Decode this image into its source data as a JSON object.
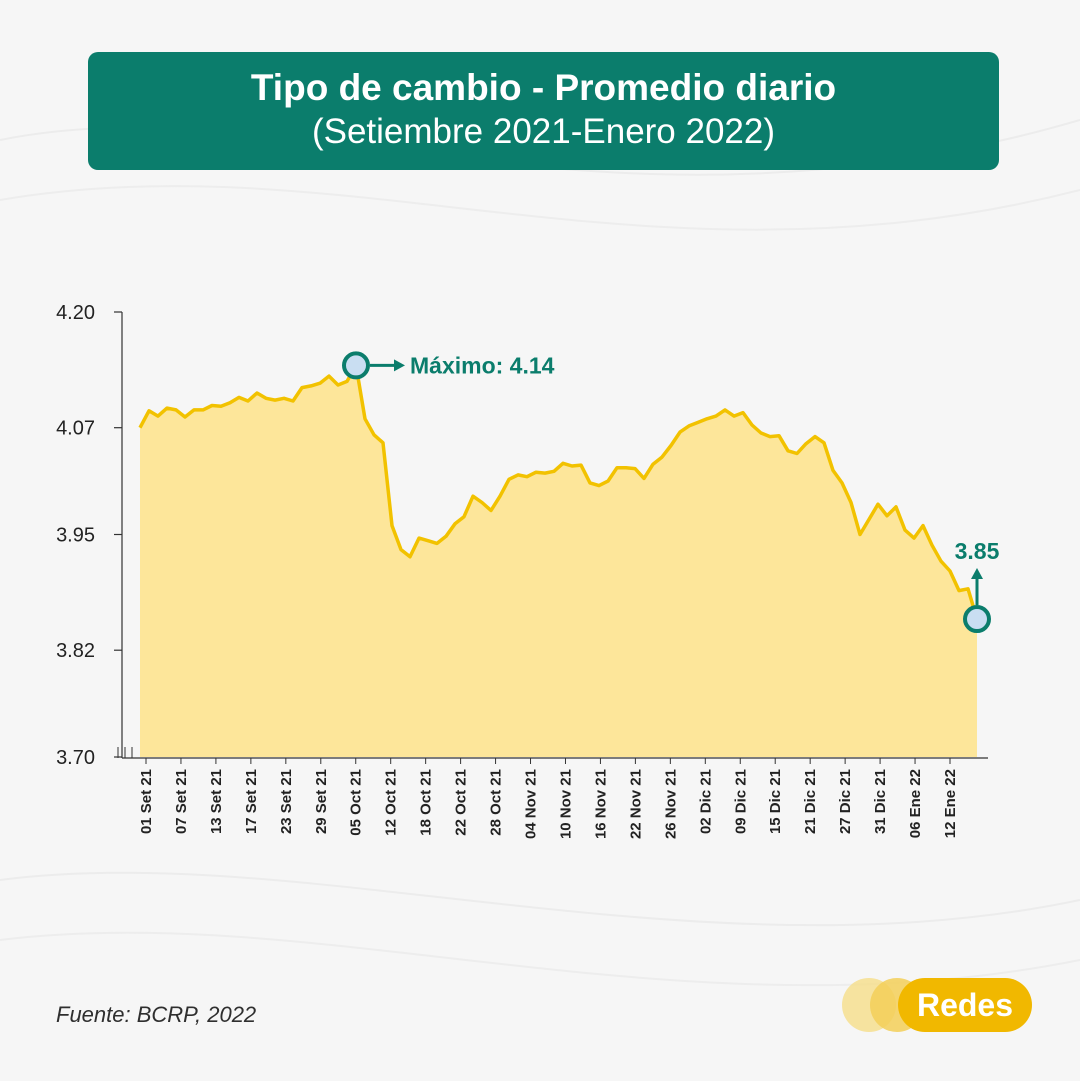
{
  "header": {
    "title": "Tipo de cambio - Promedio diario",
    "subtitle": "(Setiembre 2021-Enero 2022)"
  },
  "footer": {
    "source": "Fuente: BCRP, 2022",
    "brand": "Redes"
  },
  "colors": {
    "accent": "#0b7d6c",
    "line": "#f2c200",
    "area": "#fde69a",
    "marker_fill": "#c9def2",
    "brand": "#f1b800"
  },
  "chart_data": {
    "type": "area",
    "title": "Tipo de cambio - Promedio diario",
    "subtitle": "(Setiembre 2021-Enero 2022)",
    "xlabel": "",
    "ylabel": "",
    "ylim": [
      3.7,
      4.2
    ],
    "yticks": [
      "4.20",
      "4.07",
      "3.95",
      "3.82",
      "3.70"
    ],
    "ytick_values": [
      4.2,
      4.07,
      3.95,
      3.82,
      3.7
    ],
    "grid": false,
    "x_tick_labels": [
      "01 Set 21",
      "07 Set 21",
      "13 Set 21",
      "17 Set 21",
      "23 Set 21",
      "29 Set 21",
      "05 Oct 21",
      "12 Oct 21",
      "18 Oct 21",
      "22 Oct 21",
      "28 Oct 21",
      "04 Nov 21",
      "10 Nov 21",
      "16 Nov 21",
      "22 Nov 21",
      "26 Nov 21",
      "02 Dic 21",
      "09 Dic 21",
      "15 Dic 21",
      "21 Dic 21",
      "27 Dic 21",
      "31 Dic 21",
      "06 Ene 22",
      "12 Ene 22"
    ],
    "values": [
      4.07,
      4.089,
      4.083,
      4.092,
      4.09,
      4.082,
      4.09,
      4.09,
      4.095,
      4.094,
      4.098,
      4.104,
      4.1,
      4.109,
      4.103,
      4.101,
      4.103,
      4.1,
      4.115,
      4.117,
      4.12,
      4.128,
      4.118,
      4.122,
      4.14,
      4.08,
      4.062,
      4.053,
      3.96,
      3.933,
      3.925,
      3.946,
      3.943,
      3.94,
      3.948,
      3.962,
      3.97,
      3.993,
      3.986,
      3.977,
      3.993,
      4.012,
      4.017,
      4.015,
      4.02,
      4.019,
      4.021,
      4.03,
      4.027,
      4.028,
      4.008,
      4.005,
      4.01,
      4.025,
      4.025,
      4.024,
      4.013,
      4.029,
      4.037,
      4.05,
      4.065,
      4.072,
      4.076,
      4.08,
      4.083,
      4.09,
      4.083,
      4.087,
      4.073,
      4.064,
      4.06,
      4.061,
      4.044,
      4.041,
      4.052,
      4.06,
      4.053,
      4.022,
      4.008,
      3.986,
      3.95,
      3.967,
      3.984,
      3.971,
      3.981,
      3.955,
      3.946,
      3.96,
      3.938,
      3.92,
      3.909,
      3.887,
      3.889,
      3.855
    ],
    "annotations": [
      {
        "label": "Máximo: 4.14",
        "value": 4.14
      },
      {
        "label": "3.85",
        "value": 3.855
      }
    ]
  }
}
